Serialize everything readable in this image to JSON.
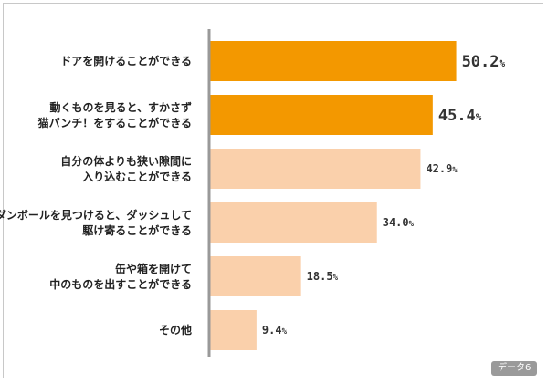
{
  "chart_data": {
    "type": "bar",
    "orientation": "horizontal",
    "categories": [
      [
        "ドアを開けることができる"
      ],
      [
        "動くものを見ると、すかさず",
        "猫パンチ！をすることができる"
      ],
      [
        "自分の体よりも狭い隙間に",
        "入り込むことができる"
      ],
      [
        "ダンボールを見つけると、ダッシュして",
        "駆け寄ることができる"
      ],
      [
        "缶や箱を開けて",
        "中のものを出すことができる"
      ],
      [
        "その他"
      ]
    ],
    "values": [
      50.2,
      45.4,
      42.9,
      34.0,
      18.5,
      9.4
    ],
    "value_labels": [
      "50.2%",
      "45.4%",
      "42.9%",
      "34.0%",
      "18.5%",
      "9.4%"
    ],
    "highlighted": [
      true,
      true,
      false,
      false,
      false,
      false
    ],
    "xlim": [
      0,
      100
    ],
    "grid": false,
    "title": "",
    "xlabel": "",
    "ylabel": ""
  },
  "colors": {
    "highlight": "#f39800",
    "normal": "#fad0ab",
    "axis": "#999999"
  },
  "badge": "データ6"
}
